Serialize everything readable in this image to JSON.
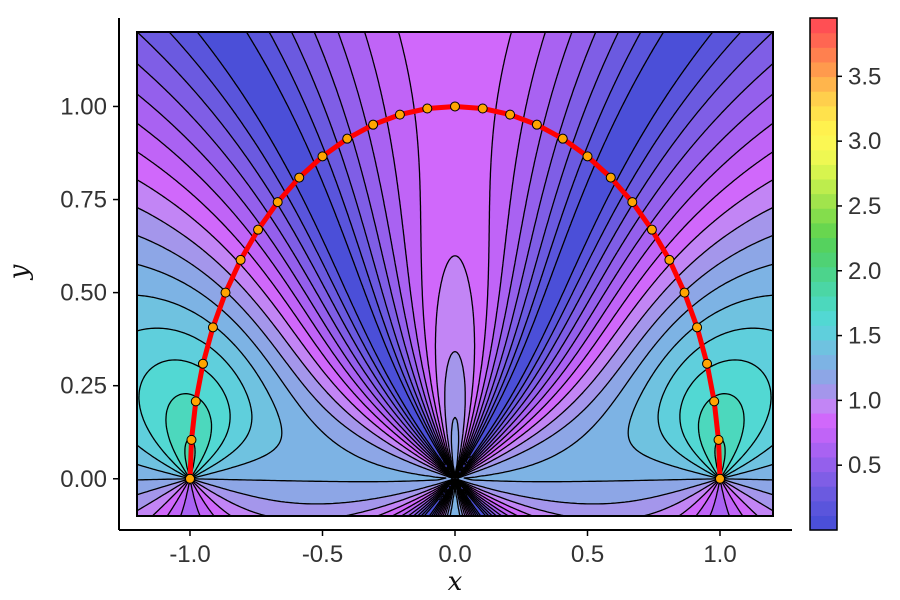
{
  "chart_data": {
    "type": "contour",
    "xlabel": "x",
    "ylabel": "y",
    "xlim": [
      -1.2,
      1.2
    ],
    "ylim": [
      -0.1,
      1.2
    ],
    "x_ticks": [
      "-1.0",
      "-0.5",
      "0.0",
      "0.5",
      "1.0"
    ],
    "y_ticks": [
      "0.00",
      "0.25",
      "0.50",
      "0.75",
      "1.00"
    ],
    "colorbar": {
      "range": [
        0,
        3.95
      ],
      "ticks": [
        "0.5",
        "1.0",
        "1.5",
        "2.0",
        "2.5",
        "3.0",
        "3.5"
      ],
      "colors": [
        "#4b4fd8",
        "#5a55dc",
        "#6b5ae0",
        "#7f5ee6",
        "#9460ec",
        "#a962f2",
        "#c064f7",
        "#d068fb",
        "#c285f5",
        "#a496eb",
        "#8da6e6",
        "#7db3e4",
        "#6fc2e0",
        "#5fcfdc",
        "#52d8d3",
        "#4cd8bd",
        "#4bd6a5",
        "#4cd48c",
        "#4fd274",
        "#55d25e",
        "#68d64f",
        "#84dd4c",
        "#a1e44c",
        "#bded4d",
        "#d7f44e",
        "#eef852",
        "#fbf753",
        "#fff14e",
        "#ffe24c",
        "#ffcf4c",
        "#ffb54c",
        "#ff9a4d",
        "#ff804f",
        "#ff6652",
        "#ff4f54"
      ]
    },
    "curve": {
      "color": "#ff0000",
      "marker_color": "#ffa500",
      "points": [
        [
          -1.0,
          0.0
        ],
        [
          -0.9945,
          0.1045
        ],
        [
          -0.9781,
          0.2079
        ],
        [
          -0.9511,
          0.309
        ],
        [
          -0.9135,
          0.4067
        ],
        [
          -0.866,
          0.5
        ],
        [
          -0.809,
          0.5878
        ],
        [
          -0.7431,
          0.6691
        ],
        [
          -0.6691,
          0.7431
        ],
        [
          -0.5878,
          0.809
        ],
        [
          -0.5,
          0.866
        ],
        [
          -0.4067,
          0.9135
        ],
        [
          -0.309,
          0.9511
        ],
        [
          -0.2079,
          0.9781
        ],
        [
          -0.1045,
          0.9945
        ],
        [
          0.0,
          1.0
        ],
        [
          0.1045,
          0.9945
        ],
        [
          0.2079,
          0.9781
        ],
        [
          0.309,
          0.9511
        ],
        [
          0.4067,
          0.9135
        ],
        [
          0.5,
          0.866
        ],
        [
          0.5878,
          0.809
        ],
        [
          0.6691,
          0.7431
        ],
        [
          0.7431,
          0.6691
        ],
        [
          0.809,
          0.5878
        ],
        [
          0.866,
          0.5
        ],
        [
          0.9135,
          0.4067
        ],
        [
          0.9511,
          0.309
        ],
        [
          0.9781,
          0.2079
        ],
        [
          0.9945,
          0.1045
        ],
        [
          1.0,
          0.0
        ]
      ]
    }
  }
}
